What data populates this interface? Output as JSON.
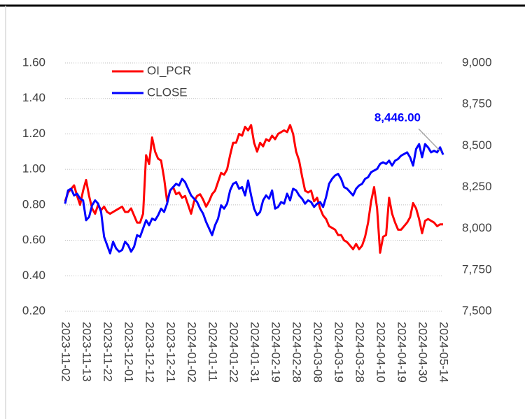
{
  "chart_data": {
    "type": "line",
    "categories": [
      "2023-11-02",
      null,
      null,
      null,
      null,
      null,
      null,
      "2023-11-13",
      null,
      null,
      null,
      null,
      null,
      null,
      "2023-11-22",
      null,
      null,
      null,
      null,
      null,
      null,
      "2023-12-01",
      null,
      null,
      null,
      null,
      null,
      null,
      "2023-12-12",
      null,
      null,
      null,
      null,
      null,
      null,
      "2023-12-21",
      null,
      null,
      null,
      null,
      null,
      null,
      "2024-01-02",
      null,
      null,
      null,
      null,
      null,
      null,
      "2024-01-11",
      null,
      null,
      null,
      null,
      null,
      null,
      "2024-01-22",
      null,
      null,
      null,
      null,
      null,
      null,
      "2024-01-31",
      null,
      null,
      null,
      null,
      null,
      null,
      "2024-02-19",
      null,
      null,
      null,
      null,
      null,
      null,
      "2024-02-28",
      null,
      null,
      null,
      null,
      null,
      null,
      "2024-03-08",
      null,
      null,
      null,
      null,
      null,
      null,
      "2024-03-19",
      null,
      null,
      null,
      null,
      null,
      null,
      "2024-03-28",
      null,
      null,
      null,
      null,
      null,
      null,
      "2024-04-10",
      null,
      null,
      null,
      null,
      null,
      null,
      "2024-04-19",
      null,
      null,
      null,
      null,
      null,
      null,
      "2024-04-30",
      null,
      null,
      null,
      null,
      null,
      null,
      "2024-05-14"
    ],
    "series": [
      {
        "name": "OI_PCR",
        "color": "#ff0000",
        "values": [
          0.82,
          0.87,
          0.89,
          0.91,
          0.85,
          0.8,
          0.88,
          0.94,
          0.85,
          0.78,
          0.75,
          0.8,
          0.77,
          0.79,
          0.76,
          0.75,
          0.76,
          0.77,
          0.78,
          0.79,
          0.76,
          0.76,
          0.78,
          0.74,
          0.7,
          0.7,
          0.75,
          1.08,
          1.03,
          1.18,
          1.1,
          1.06,
          1.05,
          0.95,
          0.82,
          0.88,
          0.9,
          0.86,
          0.87,
          0.84,
          0.85,
          0.8,
          0.75,
          0.82,
          0.85,
          0.86,
          0.83,
          0.79,
          0.82,
          0.86,
          0.88,
          0.93,
          0.98,
          0.97,
          1.0,
          1.08,
          1.15,
          1.15,
          1.2,
          1.19,
          1.24,
          1.22,
          1.25,
          1.15,
          1.1,
          1.15,
          1.13,
          1.17,
          1.16,
          1.19,
          1.17,
          1.2,
          1.21,
          1.22,
          1.21,
          1.25,
          1.2,
          1.1,
          1.05,
          0.96,
          0.88,
          0.87,
          0.88,
          0.82,
          0.84,
          0.78,
          0.74,
          0.72,
          0.68,
          0.67,
          0.66,
          0.63,
          0.63,
          0.6,
          0.59,
          0.57,
          0.55,
          0.58,
          0.55,
          0.57,
          0.62,
          0.7,
          0.82,
          0.9,
          0.78,
          0.53,
          0.62,
          0.63,
          0.84,
          0.75,
          0.7,
          0.66,
          0.66,
          0.68,
          0.7,
          0.73,
          0.81,
          0.78,
          0.72,
          0.64,
          0.71,
          0.72,
          0.71,
          0.7,
          0.68,
          0.69,
          0.69
        ]
      },
      {
        "name": "CLOSE",
        "color": "#0000ff",
        "axis": "y2",
        "values": [
          8150,
          8230,
          8240,
          8200,
          8210,
          8180,
          8170,
          8050,
          8070,
          8140,
          8170,
          8150,
          8100,
          7950,
          7900,
          7850,
          7920,
          7880,
          7860,
          7870,
          7920,
          7900,
          7860,
          7890,
          7960,
          7950,
          8000,
          8050,
          8020,
          8060,
          8050,
          8080,
          8120,
          8100,
          8150,
          8230,
          8250,
          8270,
          8260,
          8300,
          8280,
          8240,
          8200,
          8180,
          8160,
          8120,
          8090,
          8040,
          8000,
          7960,
          8020,
          8060,
          8140,
          8120,
          8150,
          8230,
          8270,
          8280,
          8240,
          8250,
          8200,
          8290,
          8200,
          8120,
          8080,
          8100,
          8170,
          8200,
          8180,
          8230,
          8120,
          8130,
          8160,
          8150,
          8210,
          8170,
          8240,
          8230,
          8200,
          8180,
          8150,
          8170,
          8160,
          8130,
          8150,
          8160,
          8130,
          8190,
          8270,
          8300,
          8320,
          8330,
          8300,
          8250,
          8240,
          8220,
          8200,
          8240,
          8260,
          8270,
          8300,
          8310,
          8340,
          8350,
          8360,
          8390,
          8400,
          8390,
          8410,
          8380,
          8410,
          8420,
          8440,
          8450,
          8460,
          8430,
          8380,
          8480,
          8510,
          8430,
          8510,
          8490,
          8460,
          8470,
          8460,
          8490,
          8446
        ],
        "value_labels": [
          null,
          null,
          null,
          null,
          null,
          null,
          null,
          null,
          null,
          null,
          null,
          null,
          null,
          null,
          null,
          null,
          null,
          null,
          null,
          null,
          null,
          null,
          null,
          null,
          null,
          null,
          null,
          null,
          null,
          null,
          null,
          null,
          null,
          null,
          null,
          null,
          null,
          null,
          null,
          null,
          null,
          null,
          null,
          null,
          null,
          null,
          null,
          null,
          null,
          null,
          null,
          null,
          null,
          null,
          null,
          null,
          null,
          null,
          null,
          null,
          null,
          null,
          null,
          null,
          null,
          null,
          null,
          null,
          null,
          null,
          null,
          null,
          null,
          null,
          null,
          null,
          null,
          null,
          null,
          null,
          null,
          null,
          null,
          null,
          null,
          null,
          null,
          null,
          null,
          null,
          null,
          null,
          null,
          null,
          null,
          null,
          null,
          null,
          null,
          null,
          null,
          null,
          null,
          null,
          null,
          null,
          null,
          null,
          null,
          null,
          null,
          null,
          null,
          null,
          null,
          null,
          null,
          null,
          null,
          null,
          null,
          null,
          null,
          null,
          null,
          null,
          "8,446.00"
        ]
      }
    ],
    "ylim": [
      0.2,
      1.6
    ],
    "yticks": [
      {
        "value": 0.2,
        "label": "0.20"
      },
      {
        "value": 0.4,
        "label": "0.40"
      },
      {
        "value": 0.6,
        "label": "0.60"
      },
      {
        "value": 0.8,
        "label": "0.80"
      },
      {
        "value": 1.0,
        "label": "1.00"
      },
      {
        "value": 1.2,
        "label": "1.20"
      },
      {
        "value": 1.4,
        "label": "1.40"
      },
      {
        "value": 1.6,
        "label": "1.60"
      }
    ],
    "y2lim": [
      7500,
      9000
    ],
    "y2ticks": [
      {
        "value": 7500,
        "label": "7,500"
      },
      {
        "value": 7750,
        "label": "7,750"
      },
      {
        "value": 8000,
        "label": "8,000"
      },
      {
        "value": 8250,
        "label": "8,250"
      },
      {
        "value": 8500,
        "label": "8,500"
      },
      {
        "value": 8750,
        "label": "8,750"
      },
      {
        "value": 9000,
        "label": "9,000"
      }
    ],
    "grid": true,
    "legend": "top-left"
  }
}
